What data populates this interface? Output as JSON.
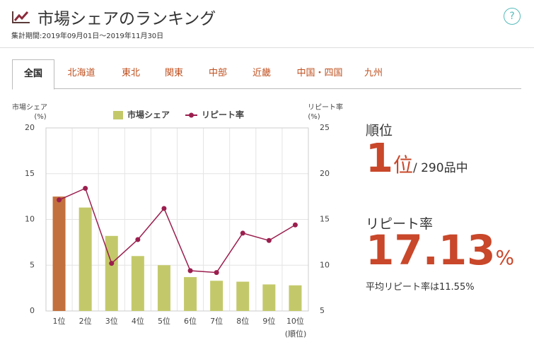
{
  "header": {
    "title": "市場シェアのランキング",
    "period": "集計期間:2019年09月01日〜2019年11月30日",
    "help": "?"
  },
  "tabs": [
    "全国",
    "北海道",
    "東北",
    "関東",
    "中部",
    "近畿",
    "中国・四国",
    "九州"
  ],
  "active_tab": 0,
  "chart_data": {
    "type": "bar-line",
    "y_label": [
      "市場シェア",
      "(%)"
    ],
    "y2_label": [
      "リピート率",
      "(%)"
    ],
    "x_label": "(順位)",
    "categories": [
      "1位",
      "2位",
      "3位",
      "4位",
      "5位",
      "6位",
      "7位",
      "8位",
      "9位",
      "10位"
    ],
    "series": [
      {
        "name": "市場シェア",
        "type": "bar",
        "color": "#c3c96a",
        "colors": [
          "#c2703d",
          "#c3c96a",
          "#c3c96a",
          "#c3c96a",
          "#c3c96a",
          "#c3c96a",
          "#c3c96a",
          "#c3c96a",
          "#c3c96a",
          "#c3c96a"
        ],
        "values": [
          12.5,
          11.3,
          8.2,
          6.0,
          5.0,
          3.7,
          3.3,
          3.2,
          2.9,
          2.8
        ]
      },
      {
        "name": "リピート率",
        "type": "line",
        "color": "#9b1f4e",
        "axis": "y2",
        "values": [
          17.13,
          18.4,
          10.2,
          12.8,
          16.2,
          9.4,
          9.2,
          13.5,
          12.7,
          14.4
        ]
      }
    ],
    "ylim": [
      0,
      20
    ],
    "yticks": [
      0,
      5,
      10,
      15,
      20
    ],
    "y2lim": [
      5,
      25
    ],
    "y2ticks": [
      5,
      10,
      15,
      20,
      25
    ],
    "grid": true
  },
  "rank": {
    "label": "順位",
    "value": "1",
    "unit": "位",
    "total": "/ 290品中"
  },
  "repeat": {
    "label": "リピート率",
    "value": "17.13",
    "unit": "%",
    "average": "平均リピート率は11.55%"
  }
}
